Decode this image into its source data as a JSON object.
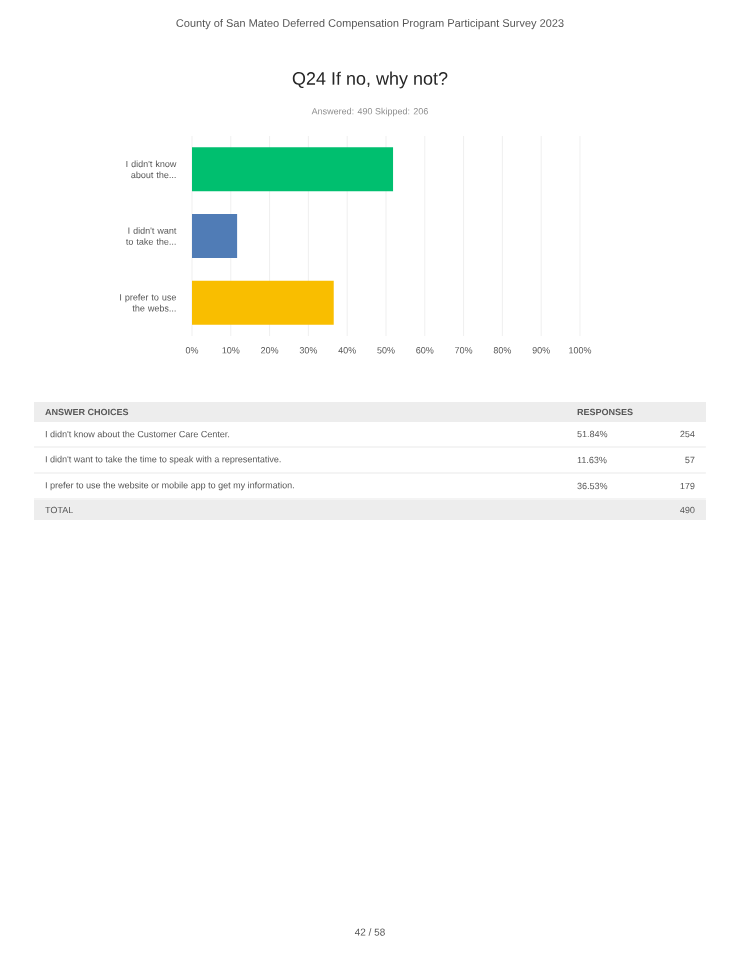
{
  "chart_data": {
    "type": "bar",
    "orientation": "horizontal",
    "title": "Q24 If no, why not?",
    "subtitle": "Answered: 490    Skipped: 206",
    "categories": [
      "I didn't know about the...",
      "I didn't want to take the...",
      "I prefer to use the webs..."
    ],
    "values": [
      51.84,
      11.63,
      36.53
    ],
    "colors": [
      "#00bf6f",
      "#507cb6",
      "#f9be00"
    ],
    "xlim": [
      0,
      100
    ],
    "xticks": [
      {
        "value": 0,
        "label": "0%"
      },
      {
        "value": 10,
        "label": "10%"
      },
      {
        "value": 20,
        "label": "20%"
      },
      {
        "value": 30,
        "label": "30%"
      },
      {
        "value": 40,
        "label": "40%"
      },
      {
        "value": 50,
        "label": "50%"
      },
      {
        "value": 60,
        "label": "60%"
      },
      {
        "value": 70,
        "label": "70%"
      },
      {
        "value": 80,
        "label": "80%"
      },
      {
        "value": 90,
        "label": "90%"
      },
      {
        "value": 100,
        "label": "100%"
      }
    ],
    "grid": "x",
    "annotations": [
      "County of San Mateo Deferred Compensation Program Participant Survey 2023",
      "ANSWER CHOICES",
      "RESPONSES",
      "I didn't know about the Customer Care Center.",
      "254",
      "I didn't want to take the time to speak with a representative.",
      "57",
      "I prefer to use the website or mobile app to get my information.",
      "179",
      "TOTAL",
      "490",
      "42 / 58",
      "51.84%",
      "11.63%",
      "36.53%"
    ]
  }
}
